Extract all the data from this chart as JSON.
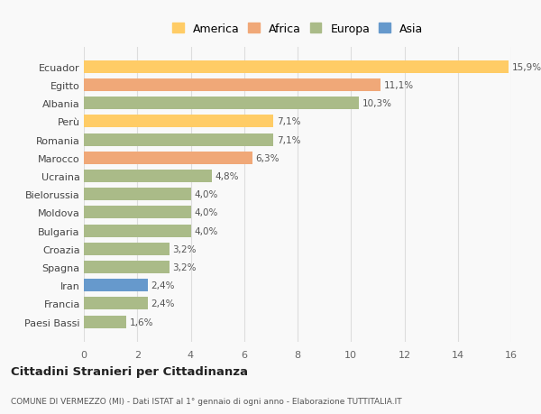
{
  "categories": [
    "Ecuador",
    "Egitto",
    "Albania",
    "Perù",
    "Romania",
    "Marocco",
    "Ucraina",
    "Bielorussia",
    "Moldova",
    "Bulgaria",
    "Croazia",
    "Spagna",
    "Iran",
    "Francia",
    "Paesi Bassi"
  ],
  "values": [
    15.9,
    11.1,
    10.3,
    7.1,
    7.1,
    6.3,
    4.8,
    4.0,
    4.0,
    4.0,
    3.2,
    3.2,
    2.4,
    2.4,
    1.6
  ],
  "labels": [
    "15,9%",
    "11,1%",
    "10,3%",
    "7,1%",
    "7,1%",
    "6,3%",
    "4,8%",
    "4,0%",
    "4,0%",
    "4,0%",
    "3,2%",
    "3,2%",
    "2,4%",
    "2,4%",
    "1,6%"
  ],
  "colors": [
    "#FFCC66",
    "#F0A878",
    "#AABB88",
    "#FFCC66",
    "#AABB88",
    "#F0A878",
    "#AABB88",
    "#AABB88",
    "#AABB88",
    "#AABB88",
    "#AABB88",
    "#AABB88",
    "#6699CC",
    "#AABB88",
    "#AABB88"
  ],
  "legend": [
    {
      "label": "America",
      "color": "#FFCC66"
    },
    {
      "label": "Africa",
      "color": "#F0A878"
    },
    {
      "label": "Europa",
      "color": "#AABB88"
    },
    {
      "label": "Asia",
      "color": "#6699CC"
    }
  ],
  "xlim": [
    0,
    16
  ],
  "xticks": [
    0,
    2,
    4,
    6,
    8,
    10,
    12,
    14,
    16
  ],
  "title": "Cittadini Stranieri per Cittadinanza",
  "subtitle": "COMUNE DI VERMEZZO (MI) - Dati ISTAT al 1° gennaio di ogni anno - Elaborazione TUTTITALIA.IT",
  "bg_color": "#f9f9f9",
  "grid_color": "#dddddd"
}
